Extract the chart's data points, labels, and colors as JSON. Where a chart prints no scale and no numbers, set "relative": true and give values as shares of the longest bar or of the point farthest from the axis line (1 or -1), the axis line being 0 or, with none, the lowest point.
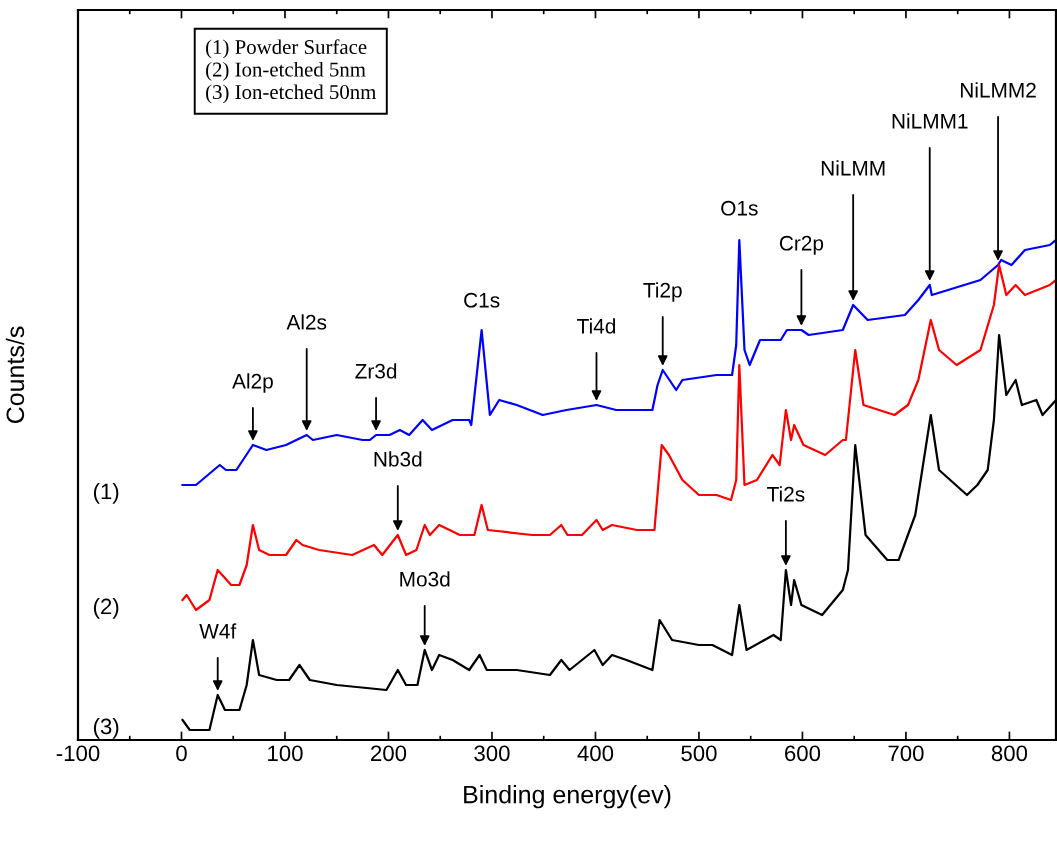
{
  "chart_data": {
    "type": "line",
    "relative": true,
    "xlabel": "Binding energy(ev)",
    "ylabel": "Counts/s",
    "xlim": [
      -100,
      845
    ],
    "xticks": [
      -100,
      0,
      100,
      200,
      300,
      400,
      500,
      600,
      700,
      800
    ],
    "grid": false,
    "marker": "none",
    "line_style": "solid",
    "series": [
      {
        "name": "(1)",
        "color": "#0000ff",
        "x": [
          1,
          14,
          37,
          43,
          53,
          69,
          82,
          101,
          121,
          127,
          150,
          175,
          182,
          188,
          201,
          211,
          220,
          233,
          242,
          262,
          278,
          280,
          290,
          298,
          307,
          324,
          349,
          372,
          401,
          420,
          455,
          460,
          465,
          478,
          484,
          517,
          532,
          536,
          539,
          544,
          549,
          559,
          579,
          585,
          599,
          606,
          639,
          649,
          663,
          699,
          712,
          723,
          725,
          772,
          789,
          792,
          802,
          815,
          839,
          845
        ],
        "values": [
          0.51,
          0.51,
          0.55,
          0.54,
          0.54,
          0.59,
          0.58,
          0.59,
          0.61,
          0.6,
          0.61,
          0.6,
          0.6,
          0.61,
          0.61,
          0.62,
          0.61,
          0.64,
          0.62,
          0.64,
          0.64,
          0.63,
          0.82,
          0.65,
          0.68,
          0.67,
          0.65,
          0.66,
          0.67,
          0.66,
          0.66,
          0.71,
          0.74,
          0.7,
          0.72,
          0.73,
          0.73,
          0.79,
          1.0,
          0.78,
          0.75,
          0.8,
          0.8,
          0.82,
          0.82,
          0.81,
          0.82,
          0.87,
          0.84,
          0.85,
          0.88,
          0.91,
          0.89,
          0.92,
          0.95,
          0.96,
          0.95,
          0.98,
          0.99,
          1.0
        ]
      },
      {
        "name": "(2)",
        "color": "#ff0000",
        "x": [
          1,
          5,
          14,
          27,
          35,
          48,
          56,
          63,
          69,
          75,
          85,
          101,
          111,
          117,
          133,
          165,
          186,
          194,
          209,
          217,
          227,
          235,
          240,
          249,
          269,
          283,
          290,
          296,
          339,
          356,
          367,
          373,
          387,
          401,
          407,
          416,
          440,
          457,
          464,
          471,
          484,
          500,
          517,
          531,
          536,
          539,
          544,
          556,
          571,
          578,
          584,
          589,
          592,
          601,
          622,
          639,
          642,
          651,
          659,
          689,
          702,
          712,
          724,
          732,
          749,
          772,
          785,
          790,
          797,
          806,
          815,
          839,
          845
        ],
        "values": [
          0.28,
          0.29,
          0.26,
          0.28,
          0.34,
          0.31,
          0.31,
          0.35,
          0.43,
          0.38,
          0.37,
          0.37,
          0.4,
          0.39,
          0.38,
          0.37,
          0.39,
          0.37,
          0.41,
          0.37,
          0.38,
          0.43,
          0.41,
          0.43,
          0.41,
          0.41,
          0.47,
          0.42,
          0.41,
          0.41,
          0.43,
          0.41,
          0.41,
          0.44,
          0.42,
          0.43,
          0.42,
          0.42,
          0.59,
          0.57,
          0.52,
          0.49,
          0.49,
          0.48,
          0.52,
          0.75,
          0.51,
          0.52,
          0.57,
          0.55,
          0.66,
          0.6,
          0.63,
          0.59,
          0.57,
          0.6,
          0.6,
          0.78,
          0.67,
          0.65,
          0.67,
          0.72,
          0.84,
          0.78,
          0.75,
          0.78,
          0.87,
          0.95,
          0.89,
          0.91,
          0.89,
          0.91,
          0.92
        ]
      },
      {
        "name": "(3)",
        "color": "#000000",
        "x": [
          1,
          8,
          27,
          35,
          42,
          56,
          63,
          69,
          75,
          92,
          104,
          114,
          124,
          150,
          198,
          209,
          217,
          228,
          235,
          242,
          249,
          262,
          278,
          288,
          295,
          324,
          356,
          367,
          375,
          399,
          407,
          416,
          430,
          455,
          462,
          474,
          500,
          513,
          532,
          539,
          546,
          572,
          579,
          584,
          589,
          592,
          599,
          619,
          639,
          644,
          651,
          661,
          682,
          693,
          709,
          724,
          732,
          759,
          769,
          779,
          785,
          790,
          797,
          806,
          812,
          826,
          832,
          845
        ],
        "values": [
          0.04,
          0.02,
          0.02,
          0.09,
          0.06,
          0.06,
          0.11,
          0.2,
          0.13,
          0.12,
          0.12,
          0.15,
          0.12,
          0.11,
          0.1,
          0.14,
          0.11,
          0.11,
          0.18,
          0.14,
          0.17,
          0.16,
          0.14,
          0.17,
          0.14,
          0.14,
          0.13,
          0.16,
          0.14,
          0.18,
          0.15,
          0.17,
          0.16,
          0.14,
          0.24,
          0.2,
          0.19,
          0.19,
          0.17,
          0.27,
          0.18,
          0.21,
          0.2,
          0.34,
          0.27,
          0.32,
          0.27,
          0.25,
          0.3,
          0.34,
          0.59,
          0.41,
          0.36,
          0.36,
          0.45,
          0.65,
          0.54,
          0.49,
          0.51,
          0.54,
          0.64,
          0.81,
          0.69,
          0.72,
          0.67,
          0.68,
          0.65,
          0.68
        ]
      }
    ],
    "annotations": [
      "(1) Powder Surface\n(2) Ion-etched 5nm\n(3) Ion-etched 50nm",
      {
        "text": "W4f",
        "x": 35,
        "y": 0.09
      },
      {
        "text": "Al2p",
        "x": 69,
        "y": 0.59
      },
      {
        "text": "Al2s",
        "x": 121,
        "y": 0.61
      },
      {
        "text": "Zr3d",
        "x": 188,
        "y": 0.61
      },
      {
        "text": "Nb3d",
        "x": 209,
        "y": 0.41
      },
      {
        "text": "Mo3d",
        "x": 235,
        "y": 0.18
      },
      {
        "text": "C1s",
        "x": 290,
        "y": 0.82
      },
      {
        "text": "Ti4d",
        "x": 401,
        "y": 0.67
      },
      {
        "text": "Ti2p",
        "x": 465,
        "y": 0.74
      },
      {
        "text": "O1s",
        "x": 539,
        "y": 1.0
      },
      {
        "text": "Cr2p",
        "x": 599,
        "y": 0.82
      },
      {
        "text": "NiLMM",
        "x": 649,
        "y": 0.87
      },
      {
        "text": "Ti2s",
        "x": 584,
        "y": 0.34
      },
      {
        "text": "NiLMM1",
        "x": 723,
        "y": 0.91
      },
      {
        "text": "NiLMM2",
        "x": 789,
        "y": 0.95
      }
    ]
  }
}
